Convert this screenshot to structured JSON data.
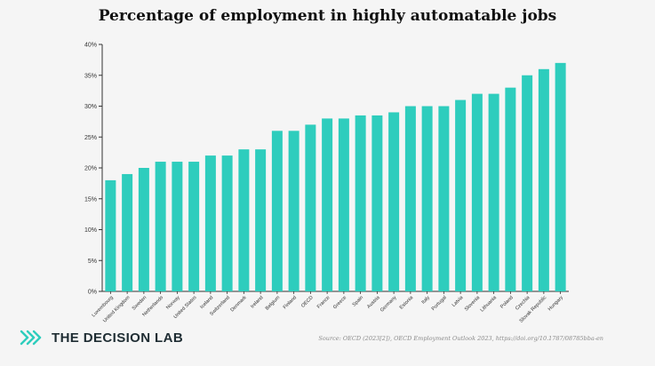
{
  "chart_data": {
    "type": "bar",
    "title": "Percentage of employment in highly automatable jobs",
    "categories": [
      "Luxembourg",
      "United Kingdom",
      "Sweden",
      "Netherlands",
      "Norway",
      "United States",
      "Iceland",
      "Switzerland",
      "Denmark",
      "Ireland",
      "Belgium",
      "Finland",
      "OECD",
      "France",
      "Greece",
      "Spain",
      "Austria",
      "Germany",
      "Estonia",
      "Italy",
      "Portugal",
      "Latvia",
      "Slovenia",
      "Lithuania",
      "Poland",
      "Czechia",
      "Slovak Republic",
      "Hungary"
    ],
    "values": [
      18,
      19,
      20,
      21,
      21,
      21,
      22,
      22,
      23,
      23,
      26,
      26,
      27,
      28,
      28,
      28.5,
      28.5,
      29,
      30,
      30,
      30,
      31,
      32,
      32,
      33,
      35,
      36,
      37
    ],
    "ylim": [
      0,
      40
    ],
    "yticks": [
      "0%",
      "5%",
      "10%",
      "15%",
      "20%",
      "25%",
      "30%",
      "35%",
      "40%"
    ],
    "xlabel": "",
    "ylabel": "",
    "grid": false,
    "colors": {
      "bar": "#2ecdbd",
      "axis": "#333333"
    }
  },
  "footer": {
    "brand": "THE DECISION LAB",
    "source": "Source: OECD (2023[2]), OECD Employment Outlook 2023, https://doi.org/10.1787/08785bba-en"
  }
}
